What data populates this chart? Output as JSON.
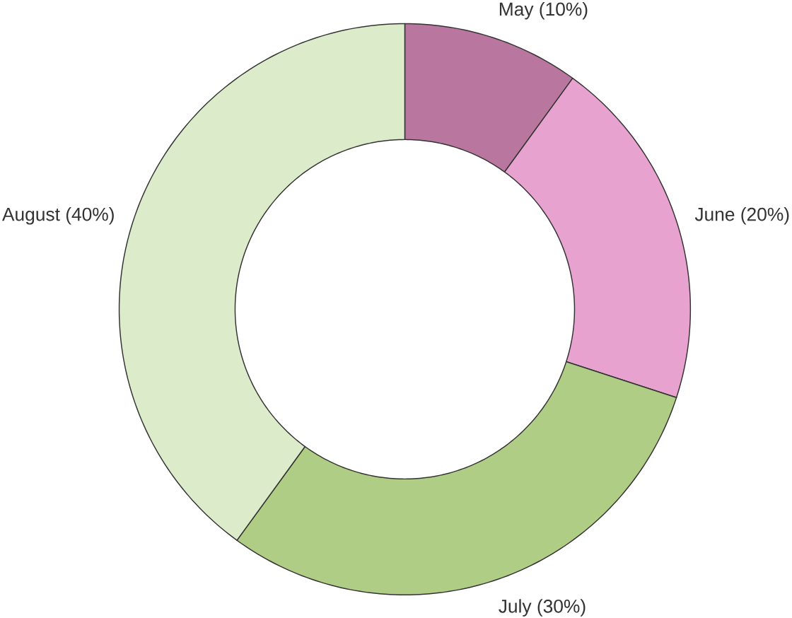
{
  "chart_data": {
    "type": "donut",
    "categories": [
      "May (10%)",
      "June (20%)",
      "July (30%)",
      "August (40%)"
    ],
    "values": [
      10,
      20,
      30,
      40
    ],
    "colors": [
      "#b9779f",
      "#e8a2cf",
      "#afcd84",
      "#dcebca"
    ]
  }
}
